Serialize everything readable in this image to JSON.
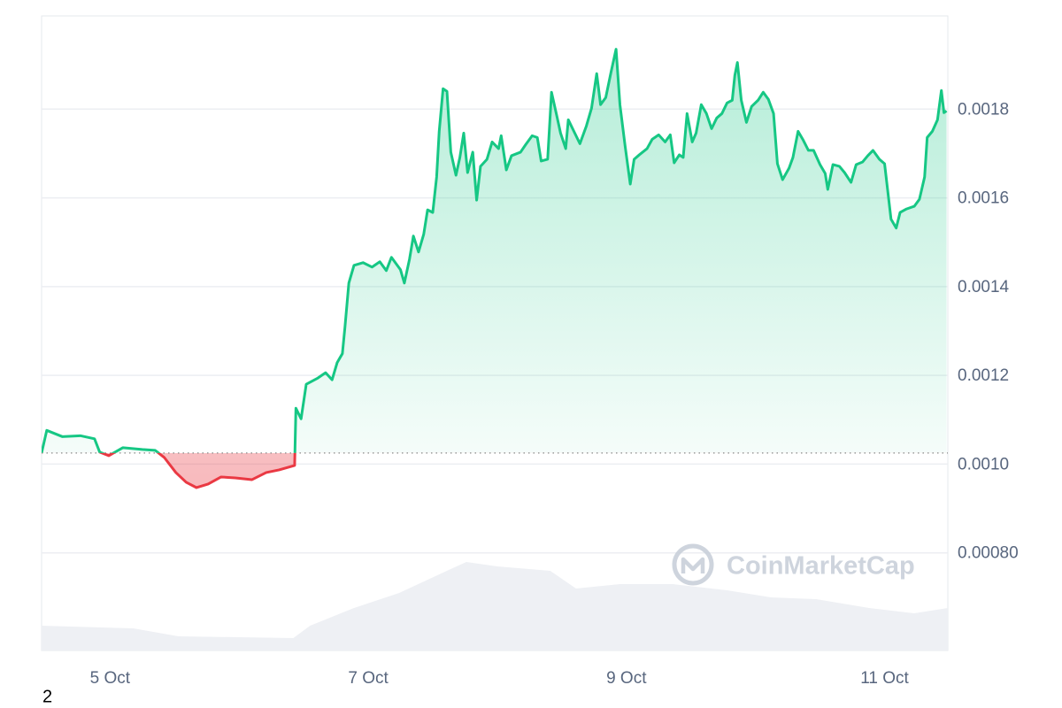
{
  "chart_data": {
    "type": "line",
    "up_color": "#16c784",
    "down_color": "#ea3943",
    "volume_color": "#eef0f4",
    "baseline": 0.001025,
    "xlim": [
      4.47,
      11.49
    ],
    "xticks": [
      {
        "value": 5,
        "label": "5 Oct"
      },
      {
        "value": 7,
        "label": "7 Oct"
      },
      {
        "value": 9,
        "label": "9 Oct"
      },
      {
        "value": 11,
        "label": "11 Oct"
      }
    ],
    "ylim": [
      0.00058,
      0.00201
    ],
    "yticks": [
      0.0018,
      0.0016,
      0.0014,
      0.0012,
      {
        "value": 0.001,
        "label": "0.0010"
      },
      {
        "value": 0.0008,
        "label": "0.00080"
      }
    ],
    "grid": true,
    "watermark": "CoinMarketCap",
    "x": [
      4.47,
      4.51,
      4.63,
      4.77,
      4.88,
      4.92,
      4.99,
      5.1,
      5.25,
      5.35,
      5.42,
      5.51,
      5.59,
      5.67,
      5.76,
      5.86,
      5.97,
      6.1,
      6.21,
      6.31,
      6.43,
      6.44,
      6.48,
      6.52,
      6.61,
      6.67,
      6.72,
      6.76,
      6.8,
      6.82,
      6.85,
      6.89,
      6.96,
      7.03,
      7.09,
      7.14,
      7.18,
      7.25,
      7.28,
      7.32,
      7.35,
      7.39,
      7.43,
      7.46,
      7.5,
      7.53,
      7.55,
      7.58,
      7.61,
      7.64,
      7.68,
      7.71,
      7.74,
      7.77,
      7.81,
      7.84,
      7.87,
      7.92,
      7.96,
      8.01,
      8.03,
      8.07,
      8.11,
      8.18,
      8.22,
      8.27,
      8.31,
      8.34,
      8.39,
      8.42,
      8.46,
      8.49,
      8.53,
      8.55,
      8.6,
      8.64,
      8.69,
      8.73,
      8.77,
      8.8,
      8.84,
      8.88,
      8.92,
      8.95,
      8.99,
      9.03,
      9.06,
      9.1,
      9.16,
      9.2,
      9.25,
      9.3,
      9.34,
      9.37,
      9.41,
      9.44,
      9.47,
      9.51,
      9.54,
      9.58,
      9.62,
      9.66,
      9.7,
      9.74,
      9.78,
      9.82,
      9.84,
      9.86,
      9.89,
      9.93,
      9.97,
      10.02,
      10.06,
      10.1,
      10.14,
      10.17,
      10.21,
      10.26,
      10.29,
      10.33,
      10.37,
      10.41,
      10.45,
      10.5,
      10.54,
      10.56,
      10.6,
      10.65,
      10.69,
      10.74,
      10.78,
      10.83,
      10.87,
      10.91,
      10.96,
      11.0,
      11.02,
      11.05,
      11.09,
      11.12,
      11.17,
      11.23,
      11.27,
      11.31,
      11.33,
      11.37,
      11.41,
      11.44,
      11.46,
      11.48
    ],
    "values": [
      0.001025,
      0.001076,
      0.001062,
      0.001064,
      0.001057,
      0.001027,
      0.001019,
      0.001037,
      0.001033,
      0.001031,
      0.001015,
      0.000981,
      0.000959,
      0.000947,
      0.000955,
      0.000971,
      0.000969,
      0.000965,
      0.000981,
      0.000987,
      0.000997,
      0.001126,
      0.001102,
      0.00118,
      0.001194,
      0.001206,
      0.00119,
      0.001229,
      0.001249,
      0.001309,
      0.001408,
      0.001448,
      0.001454,
      0.001444,
      0.001456,
      0.001436,
      0.001466,
      0.001438,
      0.001408,
      0.001462,
      0.001514,
      0.001478,
      0.001518,
      0.001573,
      0.001567,
      0.001647,
      0.00175,
      0.001846,
      0.00184,
      0.001703,
      0.001651,
      0.001691,
      0.001746,
      0.001657,
      0.001703,
      0.001595,
      0.001671,
      0.001687,
      0.001726,
      0.001711,
      0.00174,
      0.001663,
      0.001695,
      0.001703,
      0.00172,
      0.00174,
      0.001736,
      0.001683,
      0.001687,
      0.001838,
      0.001786,
      0.001746,
      0.001711,
      0.001776,
      0.001746,
      0.001722,
      0.001762,
      0.001802,
      0.00188,
      0.00181,
      0.001826,
      0.001882,
      0.001935,
      0.00181,
      0.001717,
      0.001631,
      0.001687,
      0.001697,
      0.001711,
      0.001732,
      0.001742,
      0.001726,
      0.001742,
      0.001679,
      0.001697,
      0.001691,
      0.00179,
      0.001726,
      0.001746,
      0.00181,
      0.00179,
      0.001756,
      0.00178,
      0.00179,
      0.001814,
      0.00182,
      0.001876,
      0.001905,
      0.00182,
      0.00177,
      0.001806,
      0.00182,
      0.001838,
      0.001822,
      0.00179,
      0.001677,
      0.001641,
      0.001667,
      0.001691,
      0.00175,
      0.00173,
      0.001707,
      0.001707,
      0.001675,
      0.001655,
      0.001619,
      0.001675,
      0.001671,
      0.001657,
      0.001635,
      0.001675,
      0.001681,
      0.001695,
      0.001707,
      0.001687,
      0.001677,
      0.001627,
      0.001552,
      0.001532,
      0.001567,
      0.001575,
      0.001581,
      0.001597,
      0.001647,
      0.001736,
      0.00175,
      0.001776,
      0.001842,
      0.001792,
      0.001796
    ],
    "volume": {
      "x": [
        4.47,
        5.18,
        5.53,
        6.42,
        6.55,
        6.89,
        7.24,
        7.58,
        7.76,
        8.0,
        8.41,
        8.61,
        8.95,
        9.36,
        9.78,
        10.12,
        10.47,
        10.88,
        11.23,
        11.49
      ],
      "values": [
        28,
        25,
        16,
        14,
        28,
        48,
        65,
        88,
        100,
        95,
        90,
        70,
        75,
        75,
        68,
        60,
        58,
        48,
        42,
        48
      ]
    }
  },
  "page_number": "2"
}
